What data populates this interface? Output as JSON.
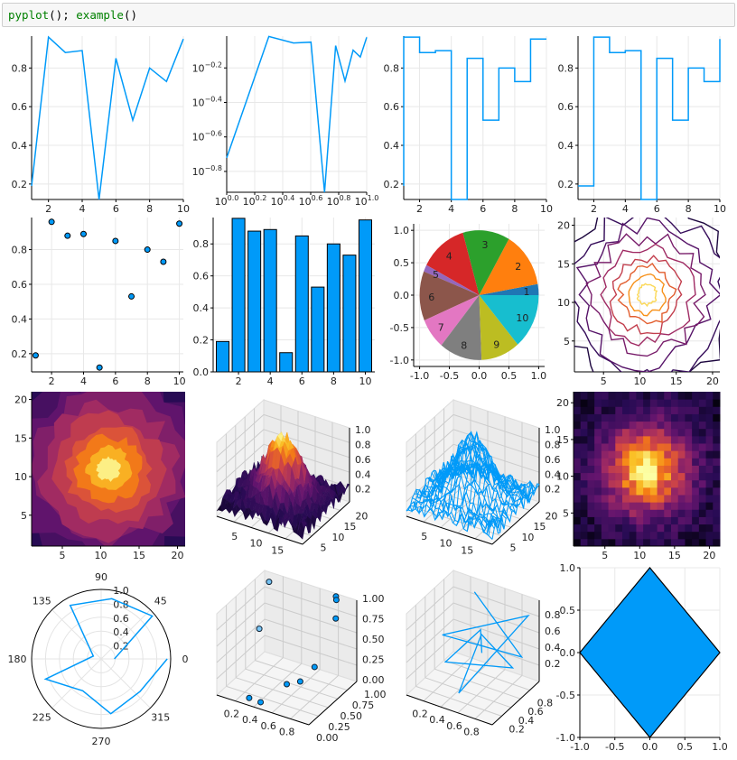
{
  "cell": {
    "tokens": [
      "pyplot",
      "();",
      " ",
      "example",
      "()"
    ]
  },
  "colors": {
    "line": "#009af9",
    "pie": [
      "#1f77b4",
      "#ff7f0e",
      "#2ca02c",
      "#d62728",
      "#9467bd",
      "#8c564b",
      "#e377c2",
      "#7f7f7f",
      "#bcbd22",
      "#17becf"
    ]
  },
  "chart_data": [
    {
      "type": "line",
      "x": [
        1,
        2,
        3,
        4,
        5,
        6,
        7,
        8,
        9,
        10
      ],
      "y": [
        0.19,
        0.96,
        0.88,
        0.89,
        0.12,
        0.85,
        0.53,
        0.8,
        0.73,
        0.95
      ],
      "xticks": [
        "2",
        "4",
        "6",
        "8",
        "10"
      ],
      "yticks": [
        "0.2",
        "0.4",
        "0.6",
        "0.8"
      ]
    },
    {
      "type": "line",
      "scale": "log-log",
      "x": [
        1,
        2,
        3,
        4,
        5,
        6,
        7,
        8,
        9,
        10
      ],
      "y": [
        0.19,
        0.96,
        0.88,
        0.89,
        0.12,
        0.85,
        0.53,
        0.8,
        0.73,
        0.95
      ],
      "xticks": [
        "10^0.0",
        "10^0.2",
        "10^0.4",
        "10^0.6",
        "10^0.8",
        "10^1.0"
      ],
      "yticks": [
        "10^-0.2",
        "10^-0.4",
        "10^-0.6",
        "10^-0.8"
      ]
    },
    {
      "type": "line",
      "step": "pre",
      "x": [
        1,
        2,
        3,
        4,
        5,
        6,
        7,
        8,
        9,
        10
      ],
      "y": [
        0.19,
        0.96,
        0.88,
        0.89,
        0.12,
        0.85,
        0.53,
        0.8,
        0.73,
        0.95
      ],
      "xticks": [
        "2",
        "4",
        "6",
        "8",
        "10"
      ],
      "yticks": [
        "0.2",
        "0.4",
        "0.6",
        "0.8"
      ]
    },
    {
      "type": "line",
      "step": "post",
      "x": [
        1,
        2,
        3,
        4,
        5,
        6,
        7,
        8,
        9,
        10
      ],
      "y": [
        0.19,
        0.96,
        0.88,
        0.89,
        0.12,
        0.85,
        0.53,
        0.8,
        0.73,
        0.95
      ],
      "xticks": [
        "2",
        "4",
        "6",
        "8",
        "10"
      ],
      "yticks": [
        "0.2",
        "0.4",
        "0.6",
        "0.8"
      ]
    },
    {
      "type": "scatter",
      "x": [
        1,
        2,
        3,
        4,
        5,
        6,
        7,
        8,
        9,
        10
      ],
      "y": [
        0.19,
        0.96,
        0.88,
        0.89,
        0.12,
        0.85,
        0.53,
        0.8,
        0.73,
        0.95
      ],
      "xticks": [
        "2",
        "4",
        "6",
        "8",
        "10"
      ],
      "yticks": [
        "0.2",
        "0.4",
        "0.6",
        "0.8"
      ]
    },
    {
      "type": "bar",
      "x": [
        1,
        2,
        3,
        4,
        5,
        6,
        7,
        8,
        9,
        10
      ],
      "y": [
        0.19,
        0.96,
        0.88,
        0.89,
        0.12,
        0.85,
        0.53,
        0.8,
        0.73,
        0.95
      ],
      "xticks": [
        "2",
        "4",
        "6",
        "8",
        "10"
      ],
      "yticks": [
        "0.0",
        "0.2",
        "0.4",
        "0.6",
        "0.8"
      ]
    },
    {
      "type": "pie",
      "labels": [
        "1",
        "2",
        "3",
        "4",
        "5",
        "6",
        "7",
        "8",
        "9",
        "10"
      ],
      "values": [
        0.19,
        0.96,
        0.88,
        0.89,
        0.12,
        0.85,
        0.53,
        0.8,
        0.73,
        0.95
      ],
      "xticks": [
        "-1.0",
        "-0.5",
        "0.0",
        "0.5",
        "1.0"
      ],
      "yticks": [
        "-1.0",
        "-0.5",
        "0.0",
        "0.5",
        "1.0"
      ]
    },
    {
      "type": "contour",
      "colormap": "inferno",
      "xlim": [
        1,
        21
      ],
      "ylim": [
        1,
        21
      ],
      "xticks": [
        "5",
        "10",
        "15",
        "20"
      ],
      "yticks": [
        "5",
        "10",
        "15",
        "20"
      ]
    },
    {
      "type": "filled-contour",
      "colormap": "inferno",
      "xlim": [
        1,
        21
      ],
      "ylim": [
        1,
        21
      ],
      "xticks": [
        "5",
        "10",
        "15",
        "20"
      ],
      "yticks": [
        "5",
        "10",
        "15",
        "20"
      ]
    },
    {
      "type": "surface",
      "colormap": "inferno",
      "xticks": [
        "5",
        "10",
        "15"
      ],
      "yticks": [
        "5",
        "10",
        "15",
        "20"
      ],
      "zticks": [
        "0.2",
        "0.4",
        "0.6",
        "0.8",
        "1.0"
      ]
    },
    {
      "type": "wireframe",
      "xticks": [
        "5",
        "10",
        "15"
      ],
      "yticks": [
        "5",
        "10",
        "15",
        "20"
      ],
      "zticks": [
        "0.2",
        "0.4",
        "0.6",
        "0.8",
        "1.0"
      ]
    },
    {
      "type": "heatmap",
      "colormap": "inferno",
      "xlim": [
        1,
        21
      ],
      "ylim": [
        1,
        21
      ],
      "xticks": [
        "5",
        "10",
        "15",
        "20"
      ],
      "yticks": [
        "5",
        "10",
        "15",
        "20"
      ]
    },
    {
      "type": "polar",
      "r": [
        0.19,
        0.96,
        0.88,
        0.89,
        0.12,
        0.85,
        0.53,
        0.8,
        0.73,
        0.95
      ],
      "angle_labels": [
        "0",
        "45",
        "90",
        "135",
        "180",
        "225",
        "270",
        "315"
      ],
      "rticks": [
        "0.2",
        "0.4",
        "0.6",
        "0.8",
        "1.0"
      ]
    },
    {
      "type": "scatter3d",
      "x": [
        0.1,
        0.15,
        0.45,
        0.5,
        0.62,
        0.75,
        0.8,
        0.82,
        0.3,
        0.85
      ],
      "y": [
        0.9,
        0.6,
        0.05,
        0.5,
        0.55,
        0.6,
        0.95,
        0.92,
        0.1,
        0.85
      ],
      "z": [
        0.95,
        0.55,
        0.05,
        0.05,
        0.1,
        0.3,
        1.0,
        0.98,
        0.02,
        0.8
      ],
      "xticks": [
        "0.2",
        "0.4",
        "0.6",
        "0.8"
      ],
      "yticks": [
        "0.00",
        "0.25",
        "0.50",
        "0.75",
        "1.00"
      ],
      "zticks": [
        "0.00",
        "0.25",
        "0.50",
        "0.75",
        "1.00"
      ]
    },
    {
      "type": "line3d",
      "x": [
        0.3,
        0.85,
        0.2,
        0.9,
        0.5,
        0.6,
        0.8,
        0.4,
        0.7,
        0.55
      ],
      "y": [
        0.9,
        0.9,
        0.4,
        0.95,
        0.2,
        0.5,
        0.8,
        0.1,
        0.3,
        0.6
      ],
      "z": [
        0.9,
        0.3,
        0.6,
        0.8,
        0.1,
        0.7,
        0.2,
        0.5,
        0.9,
        0.4
      ],
      "xticks": [
        "0.2",
        "0.4",
        "0.6",
        "0.8"
      ],
      "yticks": [
        "0.2",
        "0.4",
        "0.6",
        "0.8"
      ],
      "zticks": [
        "0.2",
        "0.4",
        "0.6",
        "0.8"
      ]
    },
    {
      "type": "shape",
      "x": [
        0,
        1,
        0,
        -1
      ],
      "y": [
        1,
        0,
        -1,
        0
      ],
      "xticks": [
        "-1.0",
        "-0.5",
        "0.0",
        "0.5",
        "1.0"
      ],
      "yticks": [
        "-1.0",
        "-0.5",
        "0.0",
        "0.5",
        "1.0"
      ]
    }
  ]
}
